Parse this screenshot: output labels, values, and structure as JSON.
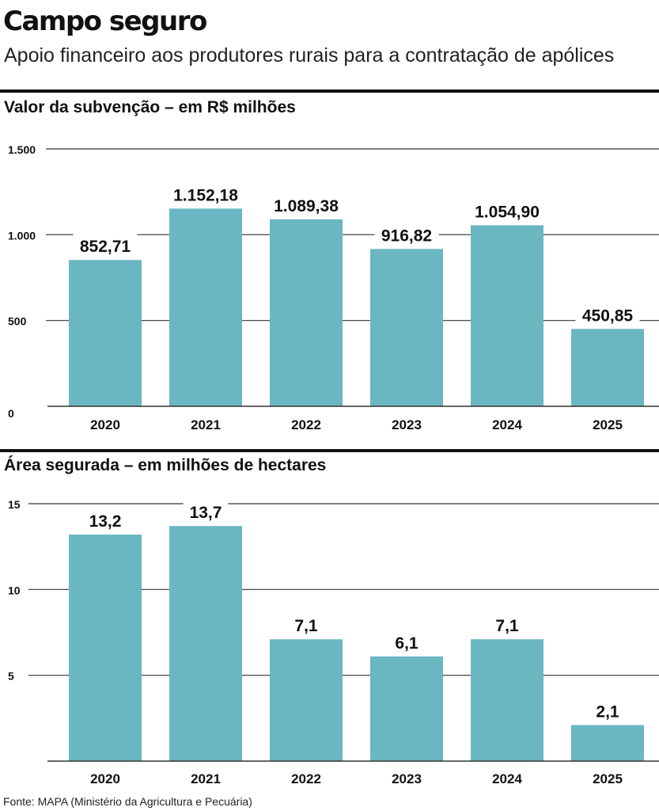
{
  "header": {
    "title": "Campo seguro",
    "subtitle": "Apoio financeiro aos produtores rurais para a contratação de apólices"
  },
  "colors": {
    "bar": "#6ab7c2",
    "text": "#111111",
    "grid": "#333333"
  },
  "chart_data": [
    {
      "type": "bar",
      "title": "Valor da subvenção – em R$ milhões",
      "categories": [
        "2020",
        "2021",
        "2022",
        "2023",
        "2024",
        "2025"
      ],
      "values": [
        852.71,
        1152.18,
        1089.38,
        916.82,
        1054.9,
        450.85
      ],
      "value_labels": [
        "852,71",
        "1.152,18",
        "1.089,38",
        "916,82",
        "1.054,90",
        "450,85"
      ],
      "ylim": [
        0,
        1500
      ],
      "yticks": [
        0,
        500,
        1000,
        1500
      ],
      "ytick_labels": [
        "0",
        "500",
        "1.000",
        "1.500"
      ],
      "grid": true,
      "xlabel": "",
      "ylabel": ""
    },
    {
      "type": "bar",
      "title": "Área segurada – em milhões de hectares",
      "categories": [
        "2020",
        "2021",
        "2022",
        "2023",
        "2024",
        "2025"
      ],
      "values": [
        13.2,
        13.7,
        7.1,
        6.1,
        7.1,
        2.1
      ],
      "value_labels": [
        "13,2",
        "13,7",
        "7,1",
        "6,1",
        "7,1",
        "2,1"
      ],
      "ylim": [
        0,
        15
      ],
      "yticks": [
        5,
        10,
        15
      ],
      "ytick_labels": [
        "5",
        "10",
        "15"
      ],
      "grid": true,
      "xlabel": "",
      "ylabel": ""
    }
  ],
  "footer": {
    "source": "Fonte: MAPA (Ministério da Agricultura e Pecuária)"
  }
}
